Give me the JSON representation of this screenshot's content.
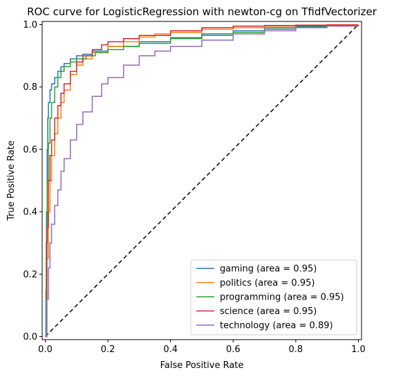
{
  "chart_data": {
    "type": "line",
    "title": "ROC curve for LogisticRegression with newton-cg on TfidfVectorizer",
    "xlabel": "False Positive Rate",
    "ylabel": "True Positive Rate",
    "xlim": [
      -0.01,
      1.01
    ],
    "ylim": [
      -0.01,
      1.01
    ],
    "xticks": [
      "0.0",
      "0.2",
      "0.4",
      "0.6",
      "0.8",
      "1.0"
    ],
    "yticks": [
      "0.0",
      "0.2",
      "0.4",
      "0.6",
      "0.8",
      "1.0"
    ],
    "grid": false,
    "legend_position": "lower-right",
    "series": [
      {
        "name": "gaming",
        "legend_label": "gaming (area = 0.95)",
        "color": "#1f77b4",
        "x": [
          0,
          0.002,
          0.004,
          0.006,
          0.008,
          0.01,
          0.015,
          0.02,
          0.03,
          0.04,
          0.05,
          0.06,
          0.08,
          0.1,
          0.12,
          0.15,
          0.2,
          0.3,
          0.4,
          0.5,
          0.6,
          0.7,
          0.8,
          0.9,
          1.0
        ],
        "y": [
          0,
          0.15,
          0.4,
          0.6,
          0.7,
          0.75,
          0.79,
          0.81,
          0.83,
          0.85,
          0.865,
          0.875,
          0.89,
          0.9,
          0.905,
          0.915,
          0.93,
          0.945,
          0.958,
          0.97,
          0.98,
          0.99,
          0.995,
          0.998,
          1.0
        ]
      },
      {
        "name": "politics",
        "legend_label": "politics (area = 0.95)",
        "color": "#ff7f0e",
        "x": [
          0,
          0.005,
          0.01,
          0.015,
          0.02,
          0.03,
          0.04,
          0.05,
          0.06,
          0.08,
          0.1,
          0.12,
          0.15,
          0.2,
          0.25,
          0.3,
          0.35,
          0.4,
          0.5,
          0.6,
          0.7,
          0.8,
          0.9,
          1.0
        ],
        "y": [
          0,
          0.25,
          0.4,
          0.5,
          0.58,
          0.65,
          0.7,
          0.75,
          0.79,
          0.84,
          0.87,
          0.89,
          0.91,
          0.93,
          0.945,
          0.96,
          0.97,
          0.975,
          0.985,
          0.99,
          0.995,
          0.998,
          0.999,
          1.0
        ]
      },
      {
        "name": "programming",
        "legend_label": "programming (area = 0.95)",
        "color": "#2ca02c",
        "x": [
          0,
          0.003,
          0.006,
          0.01,
          0.015,
          0.02,
          0.03,
          0.04,
          0.05,
          0.06,
          0.08,
          0.1,
          0.13,
          0.16,
          0.2,
          0.25,
          0.3,
          0.4,
          0.5,
          0.6,
          0.7,
          0.8,
          0.9,
          1.0
        ],
        "y": [
          0,
          0.3,
          0.5,
          0.62,
          0.7,
          0.75,
          0.8,
          0.83,
          0.85,
          0.865,
          0.88,
          0.89,
          0.9,
          0.91,
          0.92,
          0.93,
          0.94,
          0.955,
          0.965,
          0.975,
          0.985,
          0.992,
          0.997,
          1.0
        ]
      },
      {
        "name": "science",
        "legend_label": "science (area = 0.95)",
        "color": "#d62728",
        "x": [
          0,
          0.005,
          0.01,
          0.015,
          0.02,
          0.03,
          0.04,
          0.05,
          0.06,
          0.08,
          0.1,
          0.12,
          0.15,
          0.18,
          0.2,
          0.25,
          0.3,
          0.4,
          0.5,
          0.6,
          0.7,
          0.8,
          0.9,
          1.0
        ],
        "y": [
          0,
          0.35,
          0.5,
          0.58,
          0.63,
          0.7,
          0.74,
          0.78,
          0.81,
          0.85,
          0.88,
          0.9,
          0.92,
          0.935,
          0.945,
          0.955,
          0.965,
          0.98,
          0.99,
          0.995,
          0.997,
          0.998,
          0.999,
          1.0
        ]
      },
      {
        "name": "technology",
        "legend_label": "technology (area = 0.89)",
        "color": "#9467bd",
        "x": [
          0,
          0.005,
          0.01,
          0.015,
          0.02,
          0.03,
          0.04,
          0.05,
          0.06,
          0.08,
          0.1,
          0.12,
          0.15,
          0.18,
          0.2,
          0.25,
          0.3,
          0.35,
          0.4,
          0.5,
          0.6,
          0.7,
          0.8,
          0.9,
          1.0
        ],
        "y": [
          0,
          0.12,
          0.22,
          0.3,
          0.36,
          0.42,
          0.47,
          0.53,
          0.57,
          0.63,
          0.68,
          0.72,
          0.77,
          0.81,
          0.83,
          0.87,
          0.9,
          0.915,
          0.93,
          0.95,
          0.97,
          0.98,
          0.99,
          0.995,
          1.0
        ]
      }
    ],
    "reference_line": {
      "x": [
        0,
        1
      ],
      "y": [
        0,
        1
      ],
      "color": "#000000",
      "style": "dashed"
    }
  }
}
